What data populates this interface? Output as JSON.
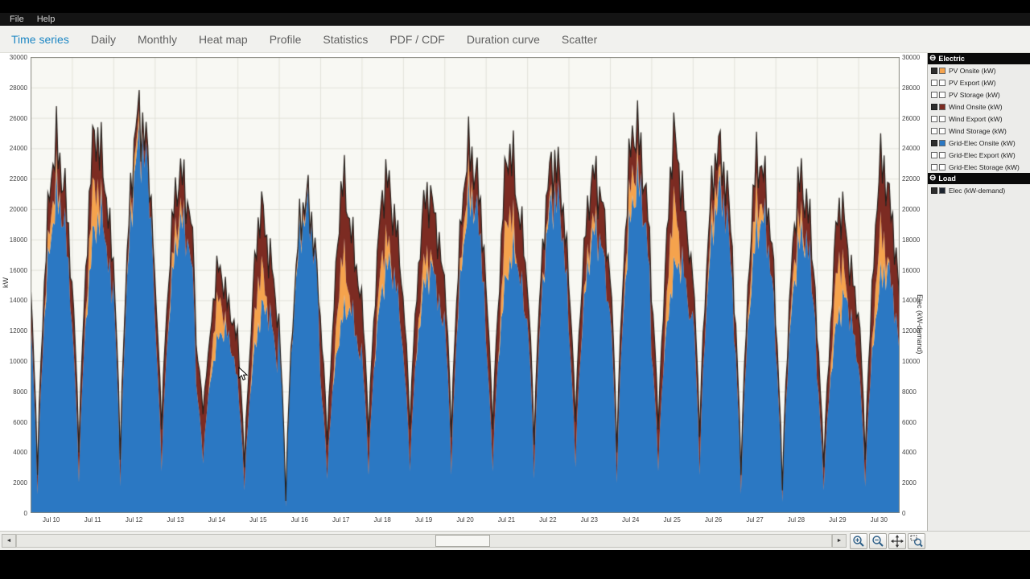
{
  "menu": {
    "file": "File",
    "help": "Help"
  },
  "icons": {
    "collapse": "⊖",
    "scroll_left": "◄",
    "scroll_right": "►"
  },
  "tabs": [
    {
      "label": "Time series",
      "active": true
    },
    {
      "label": "Daily",
      "active": false
    },
    {
      "label": "Monthly",
      "active": false
    },
    {
      "label": "Heat map",
      "active": false
    },
    {
      "label": "Profile",
      "active": false
    },
    {
      "label": "Statistics",
      "active": false
    },
    {
      "label": "PDF / CDF",
      "active": false
    },
    {
      "label": "Duration curve",
      "active": false
    },
    {
      "label": "Scatter",
      "active": false
    }
  ],
  "legend": {
    "groups": [
      {
        "title": "Electric",
        "items": [
          {
            "label": "PV Onsite (kW)",
            "color": "#f5a34d",
            "checked": true
          },
          {
            "label": "PV Export (kW)",
            "color": null,
            "checked": false
          },
          {
            "label": "PV Storage (kW)",
            "color": null,
            "checked": false
          },
          {
            "label": "Wind Onsite (kW)",
            "color": "#7c2b22",
            "checked": true
          },
          {
            "label": "Wind Export (kW)",
            "color": null,
            "checked": false
          },
          {
            "label": "Wind Storage (kW)",
            "color": null,
            "checked": false
          },
          {
            "label": "Grid-Elec Onsite (kW)",
            "color": "#2b78c3",
            "checked": true
          },
          {
            "label": "Grid-Elec Export (kW)",
            "color": null,
            "checked": false
          },
          {
            "label": "Grid-Elec Storage (kW)",
            "color": null,
            "checked": false
          }
        ]
      },
      {
        "title": "Load",
        "items": [
          {
            "label": "Elec (kW-demand)",
            "color": "#1d2430",
            "checked": true
          }
        ]
      }
    ]
  },
  "toolbar": {
    "icons": [
      "zoom-in-icon",
      "zoom-out-icon",
      "pan-icon",
      "box-zoom-icon"
    ]
  },
  "chart_data": {
    "type": "area",
    "title": "",
    "xlabel": "",
    "ylabel_left": "kW",
    "ylabel_right": "Elec (kW-demand)",
    "ylim": [
      0,
      30000
    ],
    "ytick_step": 2000,
    "grid": true,
    "legend_position": "right sidebar",
    "x_range": "Jul 10 - Jul 30",
    "resolution": "hourly",
    "stacking": "stacked areas bottom-to-top: Grid-Elec Onsite, PV Onsite, Wind Onsite; dark outline = Elec (kW-demand)",
    "x_categories": [
      "Jul 10",
      "Jul 11",
      "Jul 12",
      "Jul 13",
      "Jul 14",
      "Jul 15",
      "Jul 16",
      "Jul 17",
      "Jul 18",
      "Jul 19",
      "Jul 20",
      "Jul 21",
      "Jul 22",
      "Jul 23",
      "Jul 24",
      "Jul 25",
      "Jul 26",
      "Jul 27",
      "Jul 28",
      "Jul 29",
      "Jul 30"
    ],
    "daily_total_trough": [
      2500,
      4000,
      3500,
      5500,
      6500,
      3000,
      800,
      4500,
      5000,
      5500,
      5000,
      5500,
      4500,
      6000,
      4000,
      5500,
      5000,
      2500,
      1500,
      3000,
      3500
    ],
    "daily_total_peak": [
      24500,
      25800,
      26500,
      22600,
      16500,
      20500,
      20800,
      22300,
      22500,
      21500,
      24200,
      24700,
      23300,
      22500,
      26000,
      25300,
      24300,
      24000,
      22300,
      21000,
      23800
    ],
    "series": [
      {
        "name": "Grid-Elec Onsite (kW)",
        "color": "#2b78c3",
        "daily_peak": [
          20500,
          19500,
          24300,
          19000,
          12000,
          13500,
          19800,
          13500,
          16300,
          16000,
          20600,
          17000,
          20800,
          18500,
          21500,
          16500,
          21000,
          19300,
          18200,
          14000,
          16000
        ]
      },
      {
        "name": "PV Onsite (kW)",
        "color": "#f5a34d",
        "daily_peak": [
          1500,
          3000,
          1000,
          1200,
          2500,
          3000,
          400,
          3800,
          2200,
          1500,
          1400,
          3700,
          500,
          1000,
          2000,
          4300,
          1300,
          2200,
          1500,
          3500,
          3000
        ]
      },
      {
        "name": "Wind Onsite (kW)",
        "color": "#7c2b22",
        "daily_peak": [
          2500,
          3300,
          1200,
          2400,
          2000,
          4000,
          600,
          5000,
          4000,
          4000,
          2200,
          4000,
          2000,
          3000,
          2500,
          4500,
          2000,
          2500,
          2600,
          3500,
          4800
        ]
      }
    ],
    "demand_outline": {
      "name": "Elec (kW-demand)",
      "color": "#26201c"
    }
  }
}
